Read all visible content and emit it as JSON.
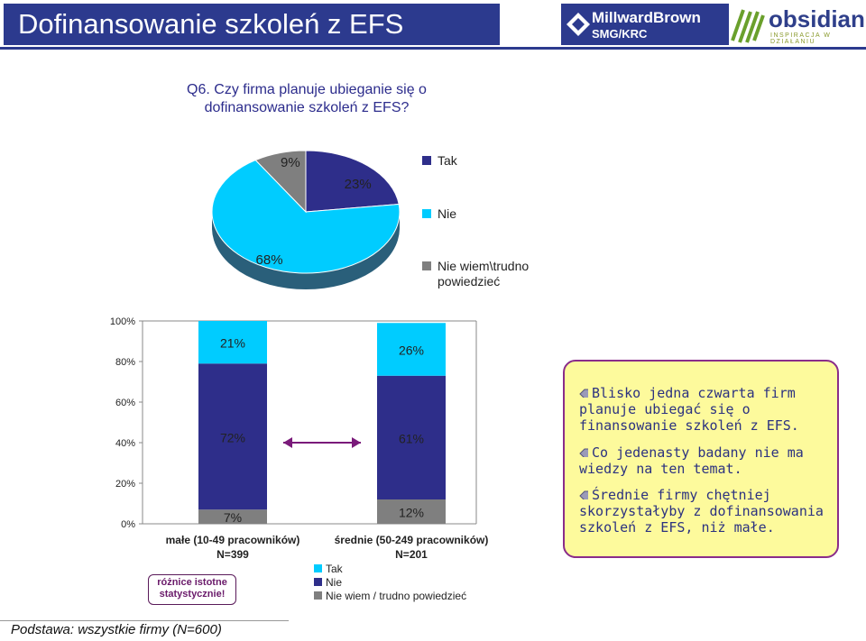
{
  "header": {
    "title": "Dofinansowanie szkoleń z EFS",
    "logo_mb_name": "MillwardBrown",
    "logo_mb_sub": "SMG/KRC",
    "logo_ob_name": "obsidian",
    "logo_ob_sub": "INSPIRACJA W DZIAŁANIU"
  },
  "question": {
    "line1": "Q6. Czy firma planuje ubieganie się o",
    "line2": "dofinansowanie szkoleń z EFS?"
  },
  "colors": {
    "tak": "#2e2e8a",
    "nie": "#00ccff",
    "niewiem": "#7f7f7f",
    "title_bg": "#2c3a8e",
    "callout_bg": "#fdfa9c",
    "callout_border": "#8a2c8a"
  },
  "chart_data": [
    {
      "type": "pie",
      "slices": [
        {
          "name": "Tak",
          "value": 23,
          "label": "23%"
        },
        {
          "name": "Nie",
          "value": 68,
          "label": "68%"
        },
        {
          "name": "Nie wiem\\trudno powiedzieć",
          "value": 9,
          "label": "9%"
        }
      ],
      "legend": [
        "Tak",
        "Nie",
        "Nie wiem\\trudno",
        "powiedzieć"
      ],
      "legend_position": "right"
    },
    {
      "type": "bar",
      "stacked": true,
      "categories": [
        {
          "line1": "małe (10-49 pracowników)",
          "line2": "N=399"
        },
        {
          "line1": "średnie (50-249 pracowników)",
          "line2": "N=201"
        }
      ],
      "series": [
        {
          "name": "Tak",
          "values": [
            21,
            26
          ],
          "labels": [
            "21%",
            "26%"
          ]
        },
        {
          "name": "Nie",
          "values": [
            72,
            61
          ],
          "labels": [
            "72%",
            "61%"
          ]
        },
        {
          "name": "Nie wiem / trudno powiedzieć",
          "values": [
            7,
            12
          ],
          "labels": [
            "7%",
            "12%"
          ]
        }
      ],
      "y_ticks": [
        "0%",
        "20%",
        "40%",
        "60%",
        "80%",
        "100%"
      ],
      "ylim": [
        0,
        100
      ],
      "legend": [
        "Tak",
        "Nie",
        "Nie wiem / trudno powiedzieć"
      ],
      "legend_position": "bottom"
    }
  ],
  "difference_note": {
    "line1": "różnice istotne",
    "line2": "statystycznie!"
  },
  "callout": {
    "items": [
      [
        "Blisko jedna czwarta firm",
        "planuje ubiegać się o",
        "finansowanie szkoleń z EFS."
      ],
      [
        "Co jedenasty badany nie ma",
        "wiedzy na ten temat."
      ],
      [
        "Średnie firmy chętniej",
        "skorzystałyby z dofinansowania",
        "szkoleń z EFS, niż małe."
      ]
    ]
  },
  "footer": "Podstawa: wszystkie firmy (N=600)"
}
